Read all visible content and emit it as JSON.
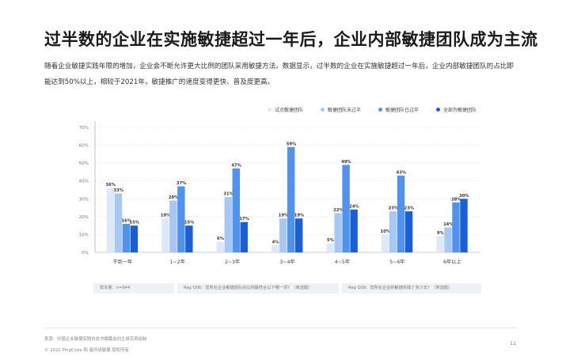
{
  "page": {
    "title": "过半数的企业在实施敏捷超过一年后，企业内部敏捷团队成为主流",
    "description": "随着企业敏捷实践年限的增加，企业会不断允许更大比例的团队采用敏捷方法。数据显示，过半数的企业在实施敏捷超过一年后，企业内部敏捷团队的占比即能达到50%以上，相较于2021年，敏捷推广的速度变得更快、普及度更高。",
    "notes": [
      "样本量：n=644",
      "Reg Q06：您所在企业敏捷团队的比例最符合以下哪一项？（单选题）",
      "Reg Q09：您所在企业的敏捷实践了多少年？（单选题）"
    ],
    "source": "来源：中国企业敏捷实践白皮书编委会向主研究员绘制",
    "copyright": "© 2022 PingCode 和 者所说敏捷 版权所有",
    "page_number": "11"
  },
  "chart_data": {
    "type": "bar",
    "categories": [
      "不到一年",
      "1~2年",
      "2~3年",
      "3~4年",
      "4~5年",
      "5~6年",
      "6年以上"
    ],
    "series": [
      {
        "name": "试点敏捷团队",
        "color": "#dde9f9",
        "values": [
          36,
          19,
          6,
          4,
          5,
          10,
          9
        ]
      },
      {
        "name": "敏捷团队未过半",
        "color": "#a6c8f2",
        "values": [
          33,
          29,
          31,
          19,
          22,
          23,
          14
        ]
      },
      {
        "name": "敏捷团队已过半",
        "color": "#4f93ee",
        "values": [
          16,
          37,
          47,
          59,
          49,
          43,
          28
        ]
      },
      {
        "name": "全部为敏捷团队",
        "color": "#1b5fd8",
        "values": [
          15,
          15,
          17,
          19,
          24,
          23,
          30
        ]
      }
    ],
    "data_labels": [
      [
        "36%",
        "33%",
        "16%",
        "15%"
      ],
      [
        "19%",
        "29%",
        "37%",
        "15%"
      ],
      [
        "6%",
        "31%",
        "47%",
        "17%"
      ],
      [
        "4%",
        "19%",
        "59%",
        "19%"
      ],
      [
        "5%",
        "22%",
        "49%",
        "24%"
      ],
      [
        "10%",
        "23%",
        "43%",
        "23%"
      ],
      [
        "9%",
        "14%",
        "28%",
        "30%"
      ]
    ],
    "y_ticks": [
      "0%",
      "10%",
      "20%",
      "30%",
      "40%",
      "50%",
      "60%",
      "70%"
    ],
    "ylim": [
      0,
      70
    ],
    "grid": true,
    "legend": "top-right"
  }
}
